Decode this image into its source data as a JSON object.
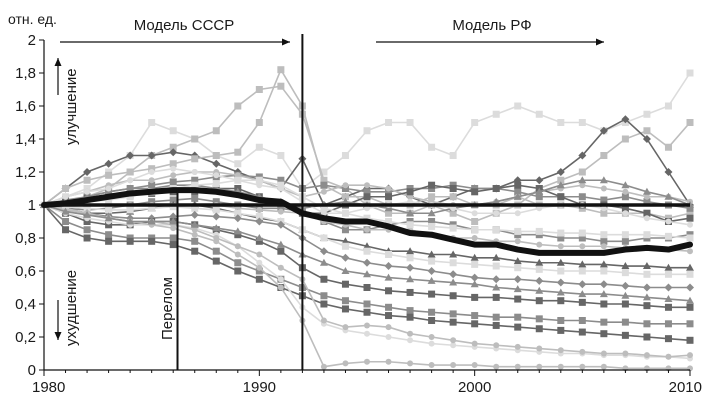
{
  "chart_data": {
    "type": "line",
    "title": "",
    "xlabel": "",
    "ylabel": "отн. ед.",
    "xlim": [
      1980,
      2010
    ],
    "ylim": [
      0,
      2
    ],
    "x_ticks": [
      "1980",
      "1990",
      "2000",
      "2010"
    ],
    "y_ticks": [
      "0",
      "0,2",
      "0,4",
      "0,6",
      "0,8",
      "1",
      "1,2",
      "1,4",
      "1,6",
      "1,8",
      "2"
    ],
    "grid": false,
    "legend": "none",
    "annotations": {
      "model_ussr": "Модель СССР",
      "model_rf": "Модель РФ",
      "improvement": "улучшение",
      "deterioration": "ухудшение",
      "turning_point": "Перелом"
    },
    "reference_lines": {
      "baseline_y": 1,
      "turning_point_x": 1986.2,
      "boundary_x": 1992
    },
    "colors": {
      "average": "#111111",
      "dark": "#666666",
      "mid": "#8c8c8c",
      "light": "#bdbdbd",
      "pale": "#dcdcdc"
    },
    "average_series": {
      "x": [
        1980,
        1981,
        1982,
        1983,
        1984,
        1985,
        1986,
        1987,
        1988,
        1989,
        1990,
        1991,
        1992,
        1993,
        1994,
        1995,
        1996,
        1997,
        1998,
        1999,
        2000,
        2001,
        2002,
        2003,
        2004,
        2005,
        2006,
        2007,
        2008,
        2009,
        2010
      ],
      "values": [
        1.0,
        1.01,
        1.03,
        1.05,
        1.07,
        1.08,
        1.09,
        1.09,
        1.08,
        1.06,
        1.03,
        1.02,
        0.95,
        0.92,
        0.9,
        0.9,
        0.87,
        0.83,
        0.82,
        0.79,
        0.76,
        0.76,
        0.73,
        0.71,
        0.71,
        0.71,
        0.71,
        0.73,
        0.74,
        0.73,
        0.76
      ]
    },
    "series": [
      {
        "marker": "square",
        "shade": "pale",
        "values": [
          1.0,
          1.05,
          1.1,
          1.2,
          1.3,
          1.5,
          1.45,
          1.4,
          1.3,
          1.25,
          1.35,
          1.3,
          1.1,
          1.2,
          1.3,
          1.45,
          1.5,
          1.5,
          1.35,
          1.3,
          1.5,
          1.55,
          1.6,
          1.55,
          1.5,
          1.5,
          1.45,
          1.5,
          1.55,
          1.6,
          1.8
        ]
      },
      {
        "marker": "square",
        "shade": "light",
        "values": [
          1.0,
          1.02,
          1.05,
          1.1,
          1.2,
          1.3,
          1.35,
          1.4,
          1.45,
          1.6,
          1.7,
          1.72,
          1.55,
          1.15,
          1.1,
          1.0,
          0.95,
          0.95,
          1.0,
          0.95,
          0.9,
          0.95,
          1.0,
          1.1,
          1.15,
          1.2,
          1.3,
          1.4,
          1.45,
          1.35,
          1.5
        ]
      },
      {
        "marker": "diamond",
        "shade": "dark",
        "values": [
          1.0,
          1.1,
          1.2,
          1.25,
          1.3,
          1.3,
          1.32,
          1.3,
          1.25,
          1.2,
          1.15,
          1.1,
          1.28,
          1.0,
          1.05,
          1.1,
          1.1,
          1.05,
          1.0,
          1.05,
          1.1,
          1.1,
          1.15,
          1.15,
          1.2,
          1.3,
          1.45,
          1.52,
          1.4,
          1.2,
          1.0
        ]
      },
      {
        "marker": "square",
        "shade": "light",
        "values": [
          1.0,
          1.1,
          1.15,
          1.18,
          1.2,
          1.22,
          1.25,
          1.28,
          1.3,
          1.32,
          1.5,
          1.82,
          1.6,
          1.12,
          1.05,
          1.05,
          1.0,
          1.0,
          1.05,
          1.05,
          1.0,
          1.0,
          1.05,
          1.0,
          1.0,
          0.98,
          0.95,
          0.95,
          0.95,
          0.92,
          0.95
        ]
      },
      {
        "marker": "square",
        "shade": "mid",
        "values": [
          1.0,
          1.03,
          1.05,
          1.08,
          1.1,
          1.12,
          1.14,
          1.15,
          1.17,
          1.18,
          1.17,
          1.15,
          1.1,
          1.12,
          1.1,
          1.08,
          1.08,
          1.1,
          1.1,
          1.12,
          1.1,
          1.1,
          1.08,
          1.05,
          1.05,
          1.05,
          1.03,
          1.05,
          1.02,
          1.0,
          0.98
        ]
      },
      {
        "marker": "circle",
        "shade": "light",
        "values": [
          1.0,
          1.05,
          1.08,
          1.12,
          1.15,
          1.15,
          1.18,
          1.2,
          1.2,
          1.18,
          1.15,
          1.1,
          1.05,
          1.08,
          1.12,
          1.12,
          1.1,
          1.05,
          1.02,
          1.0,
          1.0,
          1.02,
          1.05,
          1.08,
          1.1,
          1.12,
          1.1,
          1.08,
          1.05,
          1.05,
          1.02
        ]
      },
      {
        "marker": "square",
        "shade": "dark",
        "values": [
          1.0,
          1.02,
          1.04,
          1.05,
          1.06,
          1.07,
          1.08,
          1.08,
          1.1,
          1.1,
          1.05,
          1.0,
          0.95,
          0.95,
          1.0,
          1.05,
          1.05,
          1.08,
          1.12,
          1.1,
          1.08,
          1.1,
          1.12,
          1.1,
          1.05,
          1.0,
          1.0,
          0.98,
          0.95,
          0.9,
          0.92
        ]
      },
      {
        "marker": "triangle",
        "shade": "mid",
        "values": [
          1.0,
          1.02,
          1.05,
          1.08,
          1.1,
          1.1,
          1.12,
          1.12,
          1.1,
          1.08,
          1.05,
          1.02,
          0.98,
          1.0,
          1.02,
          1.0,
          0.98,
          0.95,
          0.95,
          0.98,
          1.0,
          1.02,
          1.05,
          1.08,
          1.12,
          1.15,
          1.15,
          1.12,
          1.08,
          1.05,
          1.0
        ]
      },
      {
        "marker": "circle",
        "shade": "pale",
        "values": [
          1.0,
          1.05,
          1.08,
          1.1,
          1.15,
          1.2,
          1.22,
          1.2,
          1.18,
          1.15,
          1.12,
          1.1,
          1.02,
          0.95,
          0.95,
          0.98,
          1.0,
          1.02,
          1.0,
          0.98,
          0.95,
          0.95,
          0.95,
          0.98,
          1.0,
          1.0,
          0.98,
          0.95,
          0.92,
          0.9,
          0.88
        ]
      },
      {
        "marker": "square",
        "shade": "mid",
        "values": [
          1.0,
          0.98,
          0.97,
          0.98,
          1.0,
          1.02,
          1.03,
          1.04,
          1.02,
          1.0,
          0.98,
          0.98,
          0.96,
          0.9,
          0.85,
          0.85,
          0.88,
          0.9,
          0.9,
          0.88,
          0.85,
          0.85,
          0.82,
          0.82,
          0.8,
          0.8,
          0.78,
          0.78,
          0.8,
          0.8,
          0.82
        ]
      },
      {
        "marker": "circle",
        "shade": "light",
        "values": [
          1.0,
          1.0,
          1.0,
          1.0,
          1.0,
          1.0,
          1.0,
          1.0,
          1.0,
          0.98,
          0.97,
          0.96,
          0.95,
          0.9,
          0.88,
          0.85,
          0.85,
          0.85,
          0.82,
          0.8,
          0.8,
          0.78,
          0.78,
          0.76,
          0.75,
          0.75,
          0.75,
          0.74,
          0.74,
          0.73,
          0.72
        ]
      },
      {
        "marker": "triangle",
        "shade": "dark",
        "values": [
          1.0,
          0.98,
          0.95,
          0.95,
          0.96,
          0.98,
          1.0,
          1.0,
          0.98,
          0.95,
          0.92,
          0.9,
          0.85,
          0.8,
          0.78,
          0.75,
          0.72,
          0.72,
          0.7,
          0.7,
          0.68,
          0.68,
          0.66,
          0.65,
          0.65,
          0.64,
          0.64,
          0.63,
          0.63,
          0.62,
          0.62
        ]
      },
      {
        "marker": "square",
        "shade": "pale",
        "values": [
          1.0,
          0.99,
          0.98,
          0.97,
          0.97,
          0.98,
          0.99,
          0.98,
          0.97,
          0.95,
          0.93,
          0.9,
          0.85,
          0.8,
          0.75,
          0.72,
          0.7,
          0.68,
          0.66,
          0.65,
          0.64,
          0.63,
          0.62,
          0.61,
          0.6,
          0.6,
          0.6,
          0.59,
          0.58,
          0.58,
          0.58
        ]
      },
      {
        "marker": "diamond",
        "shade": "mid",
        "values": [
          1.0,
          0.97,
          0.95,
          0.93,
          0.92,
          0.92,
          0.93,
          0.94,
          0.93,
          0.92,
          0.9,
          0.88,
          0.8,
          0.72,
          0.68,
          0.65,
          0.63,
          0.62,
          0.6,
          0.58,
          0.56,
          0.55,
          0.55,
          0.54,
          0.53,
          0.52,
          0.52,
          0.51,
          0.5,
          0.5,
          0.5
        ]
      },
      {
        "marker": "square",
        "shade": "dark",
        "values": [
          1.0,
          0.95,
          0.9,
          0.88,
          0.88,
          0.9,
          0.9,
          0.88,
          0.85,
          0.82,
          0.78,
          0.72,
          0.62,
          0.55,
          0.52,
          0.5,
          0.48,
          0.47,
          0.46,
          0.45,
          0.44,
          0.44,
          0.43,
          0.42,
          0.42,
          0.41,
          0.4,
          0.4,
          0.39,
          0.38,
          0.38
        ]
      },
      {
        "marker": "square",
        "shade": "mid",
        "values": [
          1.0,
          0.9,
          0.85,
          0.82,
          0.8,
          0.8,
          0.8,
          0.78,
          0.72,
          0.65,
          0.6,
          0.55,
          0.5,
          0.45,
          0.42,
          0.4,
          0.38,
          0.36,
          0.35,
          0.34,
          0.33,
          0.32,
          0.32,
          0.31,
          0.3,
          0.3,
          0.29,
          0.29,
          0.28,
          0.28,
          0.28
        ]
      },
      {
        "marker": "square",
        "shade": "dark",
        "values": [
          1.0,
          0.85,
          0.8,
          0.78,
          0.78,
          0.78,
          0.76,
          0.72,
          0.66,
          0.6,
          0.55,
          0.5,
          0.45,
          0.4,
          0.37,
          0.35,
          0.33,
          0.32,
          0.3,
          0.29,
          0.28,
          0.27,
          0.26,
          0.25,
          0.24,
          0.23,
          0.22,
          0.21,
          0.2,
          0.19,
          0.18
        ]
      },
      {
        "marker": "circle",
        "shade": "pale",
        "values": [
          1.0,
          0.95,
          0.92,
          0.9,
          0.88,
          0.88,
          0.88,
          0.86,
          0.82,
          0.75,
          0.65,
          0.55,
          0.38,
          0.28,
          0.24,
          0.22,
          0.2,
          0.18,
          0.16,
          0.15,
          0.14,
          0.13,
          0.12,
          0.11,
          0.1,
          0.1,
          0.09,
          0.09,
          0.08,
          0.08,
          0.07
        ]
      },
      {
        "marker": "circle",
        "shade": "light",
        "values": [
          1.0,
          0.98,
          0.95,
          0.92,
          0.9,
          0.88,
          0.86,
          0.82,
          0.78,
          0.7,
          0.62,
          0.5,
          0.3,
          0.02,
          0.04,
          0.05,
          0.05,
          0.04,
          0.03,
          0.03,
          0.03,
          0.02,
          0.02,
          0.02,
          0.02,
          0.02,
          0.02,
          0.01,
          0.01,
          0.01,
          0.01
        ]
      },
      {
        "marker": "circle",
        "shade": "light",
        "values": [
          1.0,
          0.97,
          0.95,
          0.92,
          0.9,
          0.9,
          0.88,
          0.85,
          0.8,
          0.75,
          0.7,
          0.62,
          0.55,
          0.3,
          0.26,
          0.27,
          0.26,
          0.22,
          0.2,
          0.18,
          0.16,
          0.15,
          0.14,
          0.13,
          0.12,
          0.11,
          0.1,
          0.1,
          0.09,
          0.08,
          0.09
        ]
      },
      {
        "marker": "square",
        "shade": "pale",
        "values": [
          1.0,
          1.0,
          1.02,
          1.03,
          1.05,
          1.08,
          1.1,
          1.12,
          1.13,
          1.15,
          1.15,
          1.12,
          1.05,
          0.98,
          0.95,
          0.92,
          0.9,
          0.88,
          0.87,
          0.86,
          0.85,
          0.85,
          0.84,
          0.84,
          0.83,
          0.83,
          0.82,
          0.82,
          0.82,
          0.81,
          0.8
        ]
      },
      {
        "marker": "triangle",
        "shade": "mid",
        "values": [
          1.0,
          0.96,
          0.94,
          0.92,
          0.9,
          0.9,
          0.9,
          0.88,
          0.86,
          0.84,
          0.8,
          0.76,
          0.7,
          0.65,
          0.6,
          0.58,
          0.56,
          0.55,
          0.54,
          0.53,
          0.52,
          0.5,
          0.49,
          0.48,
          0.47,
          0.46,
          0.46,
          0.45,
          0.44,
          0.43,
          0.42
        ]
      }
    ]
  }
}
